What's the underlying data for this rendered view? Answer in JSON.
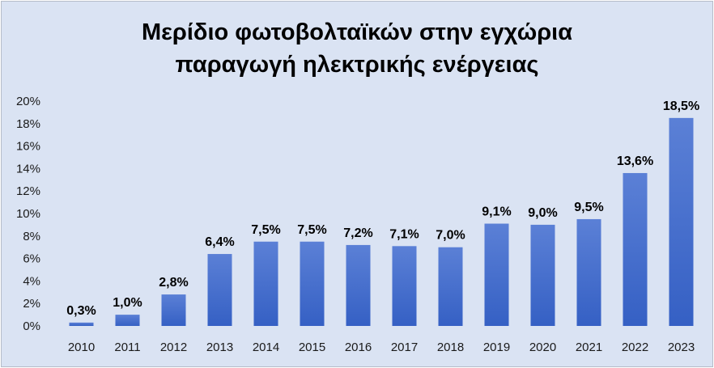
{
  "chart_data": {
    "type": "bar",
    "title_lines": [
      "Μερίδιο φωτοβολταϊκών στην εγχώρια",
      "παραγωγή ηλεκτρικής ενέργειας"
    ],
    "categories": [
      "2010",
      "2011",
      "2012",
      "2013",
      "2014",
      "2015",
      "2016",
      "2017",
      "2018",
      "2019",
      "2020",
      "2021",
      "2022",
      "2023"
    ],
    "values": [
      0.3,
      1.0,
      2.8,
      6.4,
      7.5,
      7.5,
      7.2,
      7.1,
      7.0,
      9.1,
      9.0,
      9.5,
      13.6,
      18.5
    ],
    "data_labels": [
      "0,3%",
      "1,0%",
      "2,8%",
      "6,4%",
      "7,5%",
      "7,5%",
      "7,2%",
      "7,1%",
      "7,0%",
      "9,1%",
      "9,0%",
      "9,5%",
      "13,6%",
      "18,5%"
    ],
    "y_ticks": [
      0,
      2,
      4,
      6,
      8,
      10,
      12,
      14,
      16,
      18,
      20
    ],
    "y_tick_labels": [
      "0%",
      "2%",
      "4%",
      "6%",
      "8%",
      "10%",
      "12%",
      "14%",
      "16%",
      "18%",
      "20%"
    ],
    "ylim": [
      0,
      20
    ],
    "grid": false,
    "legend": "none",
    "xlabel": "",
    "ylabel": "",
    "colors": {
      "bar_top": "#5b80d6",
      "bar_bottom": "#3560c4",
      "background": "#dae3f3"
    }
  }
}
